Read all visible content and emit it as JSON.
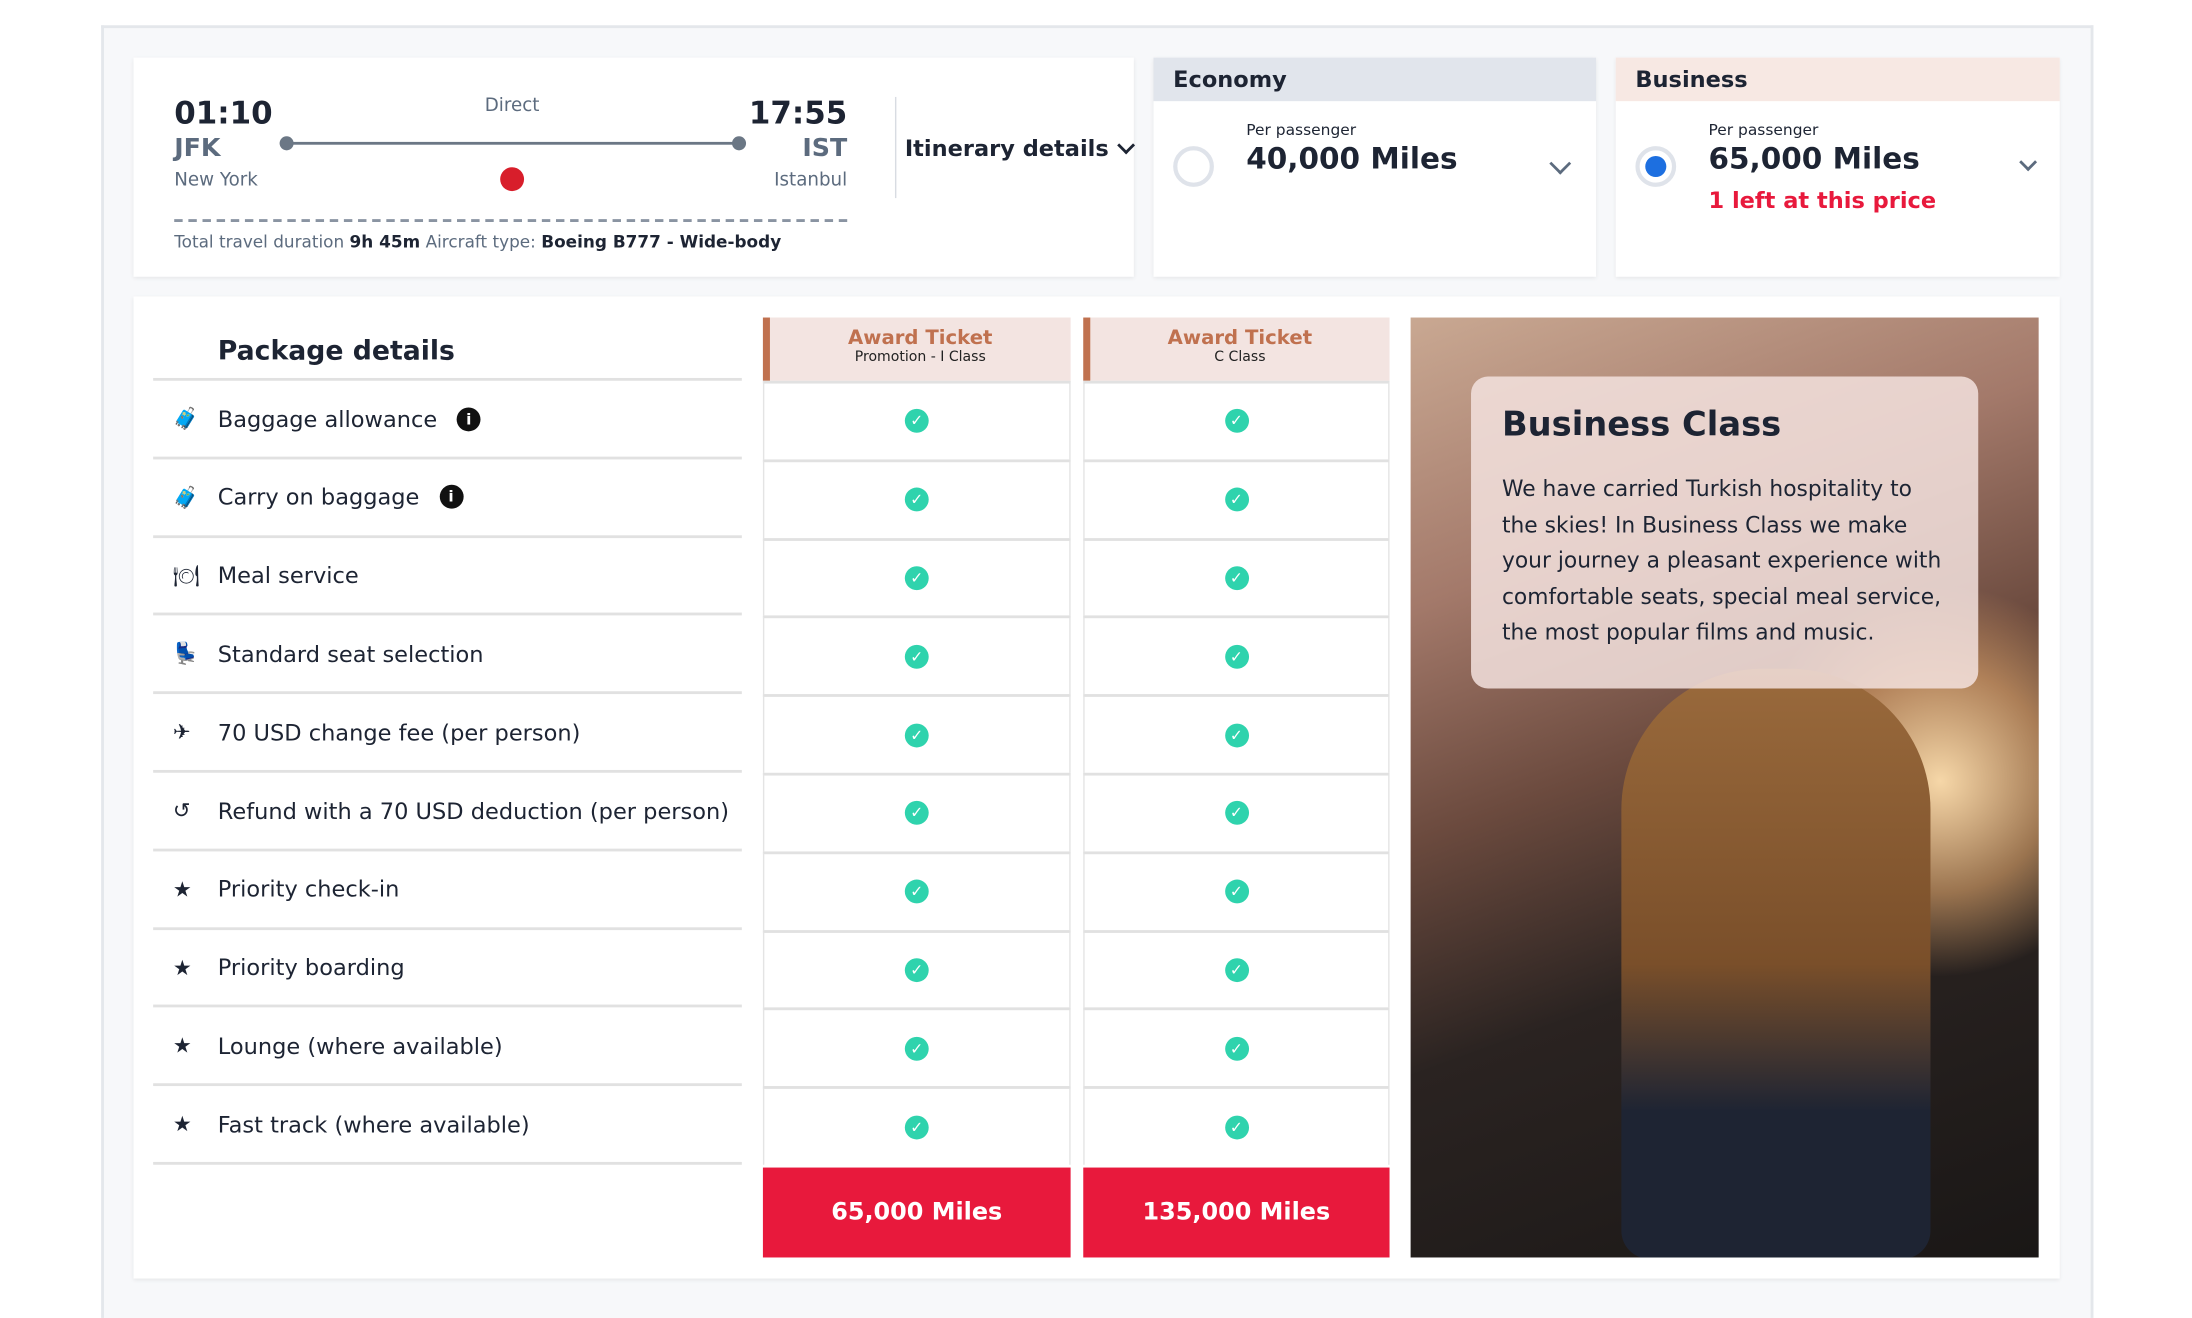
{
  "flight": {
    "dep_time": "01:10",
    "dep_code": "JFK",
    "dep_city": "New York",
    "stops": "Direct",
    "arr_time": "17:55",
    "arr_code": "IST",
    "arr_city": "Istanbul",
    "itinerary_label": "Itinerary details",
    "duration_label": "Total travel duration",
    "duration": "9h 45m",
    "aircraft_label": "Aircraft type:",
    "aircraft": "Boeing B777 - Wide-body"
  },
  "fares": [
    {
      "cabin": "Economy",
      "per": "Per passenger",
      "miles": "40,000 Miles",
      "selected": false,
      "header_color": "#e1e5ec"
    },
    {
      "cabin": "Business",
      "per": "Per passenger",
      "miles": "65,000 Miles",
      "note": "1 left at this price",
      "selected": true,
      "header_color": "#f7e8e3"
    }
  ],
  "package": {
    "title": "Package details",
    "features": [
      {
        "icon": "suitcase-icon",
        "label": "Baggage allowance",
        "info": true
      },
      {
        "icon": "carry-on-icon",
        "label": "Carry on baggage",
        "info": true
      },
      {
        "icon": "meal-icon",
        "label": "Meal service"
      },
      {
        "icon": "seat-icon",
        "label": "Standard seat selection"
      },
      {
        "icon": "change-flight-icon",
        "label": "70 USD change fee (per person)"
      },
      {
        "icon": "refund-icon",
        "label": "Refund with a 70 USD deduction (per person)"
      },
      {
        "icon": "star-icon",
        "label": "Priority check-in"
      },
      {
        "icon": "star-icon",
        "label": "Priority boarding"
      },
      {
        "icon": "star-icon",
        "label": "Lounge (where available)"
      },
      {
        "icon": "star-icon",
        "label": "Fast track (where available)"
      }
    ],
    "columns": [
      {
        "title": "Award Ticket",
        "subtitle": "Promotion - I Class",
        "price": "65,000 Miles"
      },
      {
        "title": "Award Ticket",
        "subtitle": "C Class",
        "price": "135,000 Miles"
      }
    ]
  },
  "promo": {
    "title": "Business Class",
    "text": "We have carried Turkish hospitality to the skies! In Business Class we make your journey a pleasant experience with comfortable seats, special meal service, the most popular films and music."
  },
  "colors": {
    "accent": "#e8193c",
    "check": "#2fd3ad",
    "award": "#c0714f",
    "radio": "#1d6fe0"
  }
}
